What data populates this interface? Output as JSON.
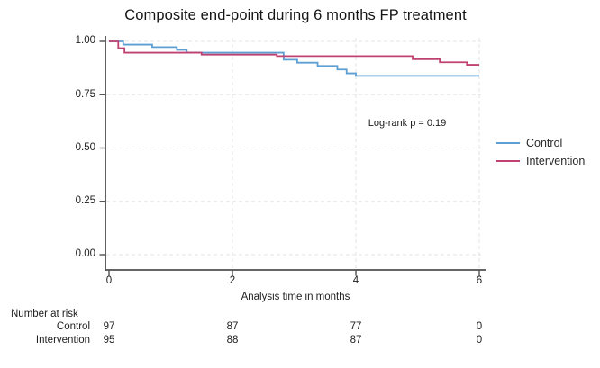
{
  "title": "Composite end-point during 6 months FP treatment",
  "chart_data": {
    "type": "line",
    "subtype": "kaplan-meier-step",
    "title": "Composite end-point during 6 months FP treatment",
    "xlabel": "Analysis time in months",
    "ylabel": "",
    "xlim": [
      0,
      6
    ],
    "ylim": [
      0.0,
      1.0
    ],
    "x_ticks": [
      0,
      2,
      4,
      6
    ],
    "x_tick_labels": [
      "0",
      "2",
      "4",
      "6"
    ],
    "y_ticks": [
      1.0,
      0.75,
      0.5,
      0.25,
      0.0
    ],
    "y_tick_labels": [
      "1.00",
      "0.75",
      "0.50",
      "0.25",
      "0.00"
    ],
    "grid": true,
    "annotation": "Log-rank p = 0.19",
    "legend_position": "right-outside",
    "series": [
      {
        "name": "Control",
        "color": "#5d9fd3",
        "steps": [
          [
            0,
            1.0
          ],
          [
            0.23,
            0.985
          ],
          [
            0.7,
            0.973
          ],
          [
            1.1,
            0.96
          ],
          [
            1.26,
            0.947
          ],
          [
            2.83,
            0.914
          ],
          [
            3.05,
            0.9
          ],
          [
            3.38,
            0.885
          ],
          [
            3.7,
            0.868
          ],
          [
            3.85,
            0.85
          ],
          [
            4.0,
            0.838
          ]
        ],
        "end_time": 6.0,
        "end_value": 0.838
      },
      {
        "name": "Intervention",
        "color": "#bf4272",
        "steps": [
          [
            0,
            1.0
          ],
          [
            0.15,
            0.968
          ],
          [
            0.25,
            0.947
          ],
          [
            1.5,
            0.938
          ],
          [
            2.72,
            0.931
          ],
          [
            4.92,
            0.916
          ],
          [
            5.36,
            0.902
          ],
          [
            5.8,
            0.89
          ]
        ],
        "end_time": 6.0,
        "end_value": 0.89
      }
    ]
  },
  "risk_table": {
    "header": "Number at risk",
    "columns": [
      0,
      2,
      4,
      6
    ],
    "rows": [
      {
        "label": "Control",
        "values": [
          97,
          87,
          77,
          0
        ]
      },
      {
        "label": "Intervention",
        "values": [
          95,
          88,
          87,
          0
        ]
      }
    ]
  },
  "colors": {
    "axis": "#4f4f4f",
    "gridline": "#e5e3e6",
    "background": "#ffffff"
  }
}
